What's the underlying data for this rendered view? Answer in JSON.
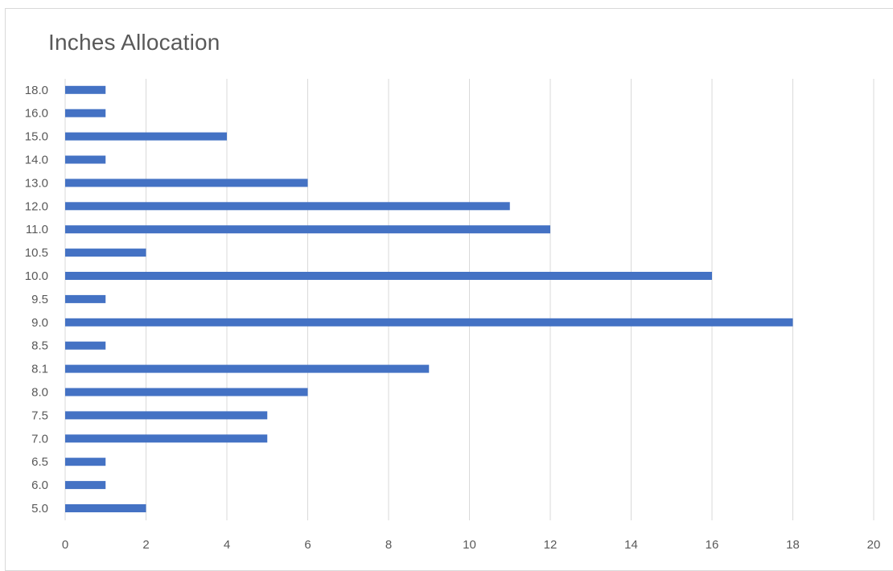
{
  "chart_data": {
    "type": "bar",
    "orientation": "horizontal",
    "title": "Inches Allocation",
    "categories": [
      "5.0",
      "6.0",
      "6.5",
      "7.0",
      "7.5",
      "8.0",
      "8.1",
      "8.5",
      "9.0",
      "9.5",
      "10.0",
      "10.5",
      "11.0",
      "12.0",
      "13.0",
      "14.0",
      "15.0",
      "16.0",
      "18.0"
    ],
    "values": [
      2,
      1,
      1,
      5,
      5,
      6,
      9,
      1,
      18,
      1,
      16,
      2,
      12,
      11,
      6,
      1,
      4,
      1,
      1
    ],
    "xlim": [
      0,
      20
    ],
    "x_ticks": [
      "0",
      "2",
      "4",
      "6",
      "8",
      "10",
      "12",
      "14",
      "16",
      "18",
      "20"
    ],
    "grid": "vertical",
    "legend": "none",
    "bar_color": "#4472C4",
    "grid_color": "#d9d9d9"
  }
}
